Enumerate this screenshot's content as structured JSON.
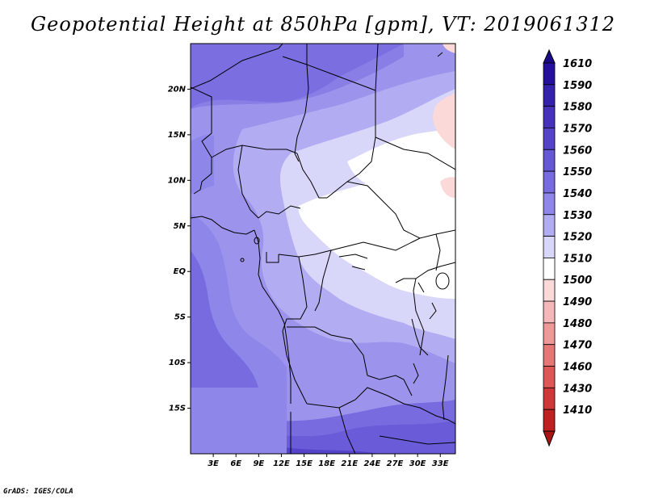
{
  "title": "Geopotential Height at 850hPa [gpm], VT: 2019061312",
  "credit": "GrADS: IGES/COLA",
  "map": {
    "lon_range": [
      0,
      35
    ],
    "lat_range": [
      -20,
      25
    ],
    "lat_ticks": [
      {
        "value": 20,
        "label": "20N"
      },
      {
        "value": 15,
        "label": "15N"
      },
      {
        "value": 10,
        "label": "10N"
      },
      {
        "value": 5,
        "label": "5N"
      },
      {
        "value": 0,
        "label": "EQ"
      },
      {
        "value": -5,
        "label": "5S"
      },
      {
        "value": -10,
        "label": "10S"
      },
      {
        "value": -15,
        "label": "15S"
      }
    ],
    "lon_ticks": [
      {
        "value": 3,
        "label": "3E"
      },
      {
        "value": 6,
        "label": "6E"
      },
      {
        "value": 9,
        "label": "9E"
      },
      {
        "value": 12,
        "label": "12E"
      },
      {
        "value": 15,
        "label": "15E"
      },
      {
        "value": 18,
        "label": "18E"
      },
      {
        "value": 21,
        "label": "21E"
      },
      {
        "value": 24,
        "label": "24E"
      },
      {
        "value": 27,
        "label": "27E"
      },
      {
        "value": 30,
        "label": "30E"
      },
      {
        "value": 33,
        "label": "33E"
      }
    ]
  },
  "colorbar": {
    "levels": [
      {
        "label": "1610",
        "color": "#24109a"
      },
      {
        "label": "1590",
        "color": "#3421ac"
      },
      {
        "label": "1580",
        "color": "#4432bc"
      },
      {
        "label": "1570",
        "color": "#5544c9"
      },
      {
        "label": "1560",
        "color": "#6657d6"
      },
      {
        "label": "1550",
        "color": "#786be0"
      },
      {
        "label": "1540",
        "color": "#8f86ea"
      },
      {
        "label": "1530",
        "color": "#b2adf2"
      },
      {
        "label": "1520",
        "color": "#d8d7fa"
      },
      {
        "label": "1510",
        "color": "#ffffff"
      },
      {
        "label": "1500",
        "color": "#fbd9d9"
      },
      {
        "label": "1490",
        "color": "#f5b7b7"
      },
      {
        "label": "1480",
        "color": "#ee9898"
      },
      {
        "label": "1470",
        "color": "#e67777"
      },
      {
        "label": "1460",
        "color": "#dd5757"
      },
      {
        "label": "1430",
        "color": "#cf3838"
      },
      {
        "label": "1410",
        "color": "#bf2020"
      }
    ],
    "top_cap_color": "#1a0a88",
    "bottom_cap_color": "#a81515"
  }
}
